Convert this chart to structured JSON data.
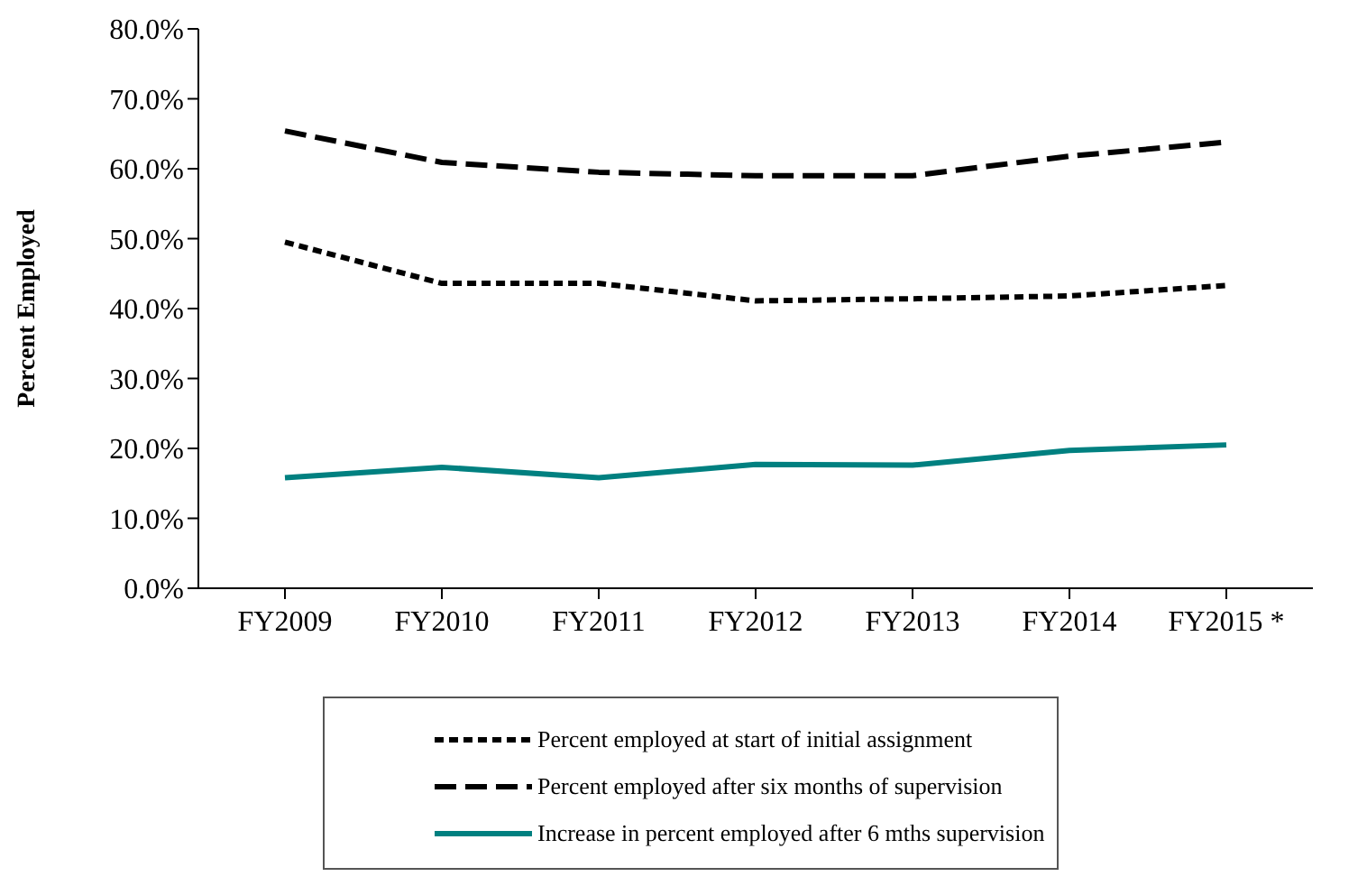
{
  "chart_data": {
    "type": "line",
    "ylabel": "Percent Employed",
    "categories": [
      "FY2009",
      "FY2010",
      "FY2011",
      "FY2012",
      "FY2013",
      "FY2014",
      "FY2015 *"
    ],
    "series": [
      {
        "name": "Percent employed at start of initial assignment",
        "color": "#000000",
        "line_style": "dotted",
        "values": [
          49.5,
          43.6,
          43.6,
          41.1,
          41.4,
          41.8,
          43.3
        ]
      },
      {
        "name": "Percent employed after six months of supervision",
        "color": "#000000",
        "line_style": "dashed",
        "values": [
          65.4,
          60.9,
          59.5,
          59.0,
          59.0,
          61.8,
          63.8
        ]
      },
      {
        "name": "Increase in percent employed after 6 mths supervision",
        "color": "#008080",
        "line_style": "solid",
        "values": [
          15.8,
          17.3,
          15.8,
          17.7,
          17.6,
          19.7,
          20.5
        ]
      }
    ],
    "ylim": [
      0,
      80
    ],
    "yticks": [
      {
        "value": 0,
        "label": "0.0%"
      },
      {
        "value": 10,
        "label": "10.0%"
      },
      {
        "value": 20,
        "label": "20.0%"
      },
      {
        "value": 30,
        "label": "30.0%"
      },
      {
        "value": 40,
        "label": "40.0%"
      },
      {
        "value": 50,
        "label": "50.0%"
      },
      {
        "value": 60,
        "label": "60.0%"
      },
      {
        "value": 70,
        "label": "70.0%"
      },
      {
        "value": 80,
        "label": "80.0%"
      }
    ],
    "grid": false,
    "legend": "bottom",
    "marker": "none"
  }
}
